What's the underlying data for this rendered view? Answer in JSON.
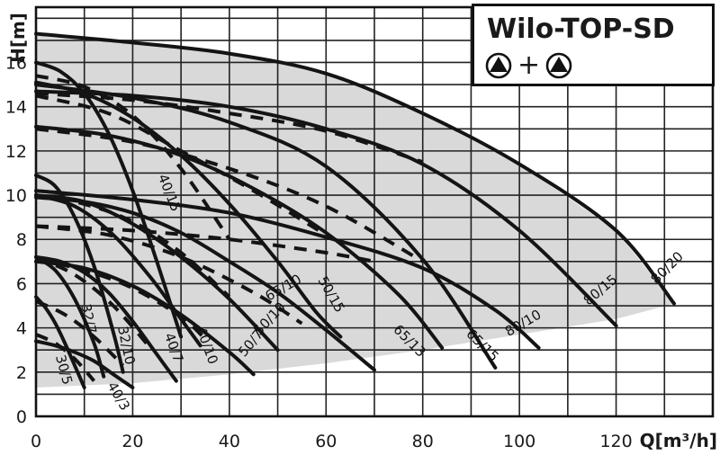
{
  "chart_data": {
    "type": "line",
    "title": "Wilo-TOP-SD",
    "xlabel": "Q[m³/h]",
    "ylabel": "H[m]",
    "xlim": [
      0,
      140
    ],
    "ylim": [
      0,
      18.5
    ],
    "x_ticks": [
      0,
      20,
      40,
      60,
      80,
      100,
      120
    ],
    "y_ticks": [
      0,
      2,
      4,
      6,
      8,
      10,
      12,
      14,
      16
    ],
    "grid": true,
    "legend": "top-right",
    "legend_symbols": [
      "pump-icon",
      "plus",
      "pump-icon"
    ],
    "legend_plus": "+",
    "envelope": {
      "color": "#d9d9d9",
      "x": [
        0,
        5,
        20,
        40,
        60,
        80,
        100,
        120,
        132,
        132,
        120,
        100,
        80,
        60,
        40,
        20,
        0
      ],
      "y": [
        17.3,
        17.2,
        16.9,
        16.4,
        15.5,
        13.7,
        11.4,
        8.4,
        5.1,
        5.1,
        4.4,
        3.7,
        3.0,
        2.4,
        1.9,
        1.5,
        1.3
      ]
    },
    "series": [
      {
        "name": "30/5",
        "style": "solid",
        "x": [
          0,
          2,
          4,
          6,
          8,
          10
        ],
        "y": [
          5.4,
          4.9,
          4.2,
          3.3,
          2.3,
          1.3
        ]
      },
      {
        "name": "30/5",
        "style": "dashed",
        "x": [
          0,
          4,
          8,
          12
        ],
        "y": [
          3.7,
          3.3,
          2.6,
          1.6
        ]
      },
      {
        "name": "32/7",
        "style": "solid",
        "x": [
          0,
          4,
          8,
          12,
          14
        ],
        "y": [
          7.2,
          6.6,
          5.3,
          3.3,
          1.8
        ]
      },
      {
        "name": "32/7",
        "style": "dashed",
        "x": [
          0,
          6,
          12,
          18
        ],
        "y": [
          5.2,
          4.6,
          3.6,
          2.3
        ]
      },
      {
        "name": "32/10",
        "style": "solid",
        "x": [
          0,
          4,
          8,
          12,
          16,
          18
        ],
        "y": [
          10.9,
          10.4,
          9.0,
          6.8,
          3.8,
          2.0
        ]
      },
      {
        "name": "32/10",
        "style": "dashed",
        "x": [
          0,
          8,
          16,
          24
        ],
        "y": [
          7.2,
          6.4,
          5.0,
          3.0
        ]
      },
      {
        "name": "40/3",
        "style": "solid",
        "x": [
          0,
          4,
          8,
          12,
          16,
          20
        ],
        "y": [
          3.4,
          3.2,
          2.9,
          2.5,
          1.9,
          1.3
        ]
      },
      {
        "name": "40/7",
        "style": "solid",
        "x": [
          0,
          5,
          10,
          15,
          20,
          25,
          29
        ],
        "y": [
          7.2,
          7.0,
          6.5,
          5.6,
          4.3,
          2.8,
          1.6
        ]
      },
      {
        "name": "40/7",
        "style": "dashed",
        "x": [
          0,
          10,
          20,
          30,
          35
        ],
        "y": [
          7.1,
          6.6,
          5.8,
          4.5,
          3.5
        ]
      },
      {
        "name": "40/10",
        "style": "solid",
        "x": [
          0,
          8,
          16,
          24,
          30,
          34
        ],
        "y": [
          10.0,
          9.5,
          8.2,
          6.2,
          4.4,
          3.2
        ]
      },
      {
        "name": "40/10",
        "style": "dashed",
        "x": [
          0,
          10,
          20,
          30,
          40
        ],
        "y": [
          10.0,
          9.6,
          8.8,
          7.4,
          5.4
        ]
      },
      {
        "name": "40/15",
        "style": "solid",
        "x": [
          0,
          5,
          10,
          15,
          20,
          25,
          30
        ],
        "y": [
          16.0,
          15.6,
          14.6,
          12.8,
          10.2,
          7.0,
          3.6
        ]
      },
      {
        "name": "40/15",
        "style": "dashed",
        "x": [
          0,
          10,
          20,
          30,
          40
        ],
        "y": [
          15.4,
          14.9,
          13.6,
          11.2,
          8.0
        ]
      },
      {
        "name": "50/7",
        "style": "solid",
        "x": [
          0,
          10,
          20,
          30,
          40,
          45
        ],
        "y": [
          7.0,
          6.7,
          5.9,
          4.6,
          2.9,
          1.9
        ]
      },
      {
        "name": "50/10",
        "style": "solid",
        "x": [
          0,
          10,
          20,
          30,
          40,
          50
        ],
        "y": [
          10.0,
          9.7,
          8.7,
          7.2,
          5.3,
          3.0
        ]
      },
      {
        "name": "50/10",
        "style": "dashed",
        "x": [
          0,
          15,
          30,
          45,
          55
        ],
        "y": [
          8.6,
          8.2,
          7.2,
          5.6,
          4.2
        ]
      },
      {
        "name": "50/15",
        "style": "solid",
        "x": [
          0,
          10,
          20,
          30,
          40,
          50,
          58,
          63
        ],
        "y": [
          15.1,
          14.6,
          13.5,
          11.8,
          9.6,
          7.0,
          4.7,
          3.6
        ]
      },
      {
        "name": "50/15",
        "style": "dashed",
        "x": [
          0,
          15,
          30,
          45,
          60
        ],
        "y": [
          14.5,
          13.7,
          12.0,
          10.2,
          8.2
        ]
      },
      {
        "name": "65/10",
        "style": "solid",
        "x": [
          0,
          10,
          20,
          30,
          40,
          50,
          60,
          70
        ],
        "y": [
          9.9,
          9.7,
          9.2,
          8.3,
          7.0,
          5.6,
          3.9,
          2.1
        ]
      },
      {
        "name": "65/10",
        "style": "dashed",
        "x": [
          0,
          20,
          40,
          60,
          70
        ],
        "y": [
          8.6,
          8.4,
          8.0,
          7.4,
          7.0
        ]
      },
      {
        "name": "65/13",
        "style": "solid",
        "x": [
          0,
          15,
          30,
          45,
          60,
          75,
          84
        ],
        "y": [
          13.1,
          12.7,
          11.8,
          10.3,
          8.3,
          5.5,
          3.1
        ]
      },
      {
        "name": "65/13",
        "style": "dashed",
        "x": [
          0,
          20,
          40,
          60,
          80
        ],
        "y": [
          13.0,
          12.4,
          11.2,
          9.5,
          7.0
        ]
      },
      {
        "name": "65/15",
        "style": "solid",
        "x": [
          0,
          20,
          40,
          60,
          80,
          95
        ],
        "y": [
          15.0,
          14.4,
          13.3,
          11.3,
          7.1,
          2.2
        ]
      },
      {
        "name": "65/15",
        "style": "dashed",
        "x": [
          0,
          20,
          40,
          60,
          80
        ],
        "y": [
          14.6,
          14.3,
          13.7,
          12.9,
          11.5
        ]
      },
      {
        "name": "80/10",
        "style": "solid",
        "x": [
          0,
          20,
          40,
          60,
          80,
          95,
          104
        ],
        "y": [
          10.2,
          9.8,
          9.2,
          8.1,
          6.7,
          4.8,
          3.1
        ]
      },
      {
        "name": "80/15",
        "style": "solid",
        "x": [
          0,
          20,
          40,
          60,
          80,
          100,
          120
        ],
        "y": [
          14.7,
          14.5,
          14.0,
          13.0,
          11.4,
          8.4,
          4.1
        ]
      },
      {
        "name": "80/20",
        "style": "solid",
        "x": [
          0,
          20,
          40,
          60,
          80,
          100,
          120,
          132
        ],
        "y": [
          17.3,
          16.9,
          16.4,
          15.5,
          13.7,
          11.4,
          8.4,
          5.1
        ]
      }
    ],
    "annotations": [
      {
        "text": "30/5",
        "x": 5.7,
        "y": 2.1,
        "rotate": 75
      },
      {
        "text": "40/3",
        "x": 17,
        "y": 0.9,
        "rotate": 60
      },
      {
        "text": "32/7",
        "x": 10.8,
        "y": 4.4,
        "rotate": 78
      },
      {
        "text": "32/10",
        "x": 18.6,
        "y": 3.2,
        "rotate": 78
      },
      {
        "text": "40/7",
        "x": 28.4,
        "y": 3.1,
        "rotate": 70
      },
      {
        "text": "40/10",
        "x": 35.3,
        "y": 3.2,
        "rotate": 70
      },
      {
        "text": "40/15",
        "x": 27.5,
        "y": 10.1,
        "rotate": 68
      },
      {
        "text": "50/7",
        "x": 44.5,
        "y": 3.3,
        "rotate": -50
      },
      {
        "text": "50/10",
        "x": 48.4,
        "y": 4.4,
        "rotate": -47
      },
      {
        "text": "65/10",
        "x": 51.2,
        "y": 5.8,
        "rotate": -30
      },
      {
        "text": "50/15",
        "x": 61,
        "y": 5.5,
        "rotate": 60
      },
      {
        "text": "65/13",
        "x": 77.2,
        "y": 3.4,
        "rotate": 45
      },
      {
        "text": "65/15",
        "x": 92.3,
        "y": 3.2,
        "rotate": 45
      },
      {
        "text": "80/10",
        "x": 100.8,
        "y": 4.2,
        "rotate": -30
      },
      {
        "text": "80/15",
        "x": 116.8,
        "y": 5.7,
        "rotate": -40
      },
      {
        "text": "80/20",
        "x": 130.6,
        "y": 6.7,
        "rotate": -45
      }
    ]
  }
}
